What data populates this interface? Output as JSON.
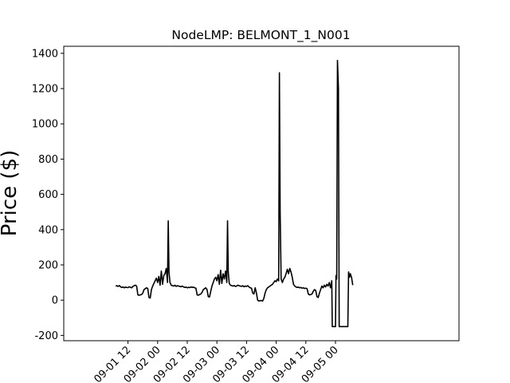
{
  "chart_data": {
    "type": "line",
    "title": "NodeLMP: BELMONT_1_N001",
    "xlabel": "",
    "ylabel": "Price ($)",
    "ylim": [
      -230,
      1440
    ],
    "xlim_hours": [
      -26,
      134
    ],
    "y_ticks": [
      -200,
      0,
      200,
      400,
      600,
      800,
      1000,
      1200,
      1400
    ],
    "x_ticks": [
      {
        "label": "09-01 12",
        "hour": 0
      },
      {
        "label": "09-02 00",
        "hour": 12
      },
      {
        "label": "09-02 12",
        "hour": 24
      },
      {
        "label": "09-03 00",
        "hour": 36
      },
      {
        "label": "09-03 12",
        "hour": 48
      },
      {
        "label": "09-04 00",
        "hour": 60
      },
      {
        "label": "09-04 12",
        "hour": 72
      },
      {
        "label": "09-05 00",
        "hour": 84
      }
    ],
    "grid": false,
    "series": [
      {
        "color": "#000000",
        "points": [
          [
            -5,
            80
          ],
          [
            -4.5,
            82
          ],
          [
            -4,
            78
          ],
          [
            -3.5,
            83
          ],
          [
            -3,
            76
          ],
          [
            -2.5,
            72
          ],
          [
            -2,
            75
          ],
          [
            -1.5,
            70
          ],
          [
            -1,
            74
          ],
          [
            -0.5,
            72
          ],
          [
            0,
            71
          ],
          [
            0.5,
            76
          ],
          [
            1,
            73
          ],
          [
            1.5,
            70
          ],
          [
            2,
            78
          ],
          [
            2.5,
            82
          ],
          [
            3,
            85
          ],
          [
            3.5,
            80
          ],
          [
            4,
            30
          ],
          [
            4.5,
            28
          ],
          [
            5,
            30
          ],
          [
            5.5,
            32
          ],
          [
            6,
            40
          ],
          [
            6.5,
            60
          ],
          [
            7,
            65
          ],
          [
            7.5,
            70
          ],
          [
            8,
            66
          ],
          [
            8.5,
            15
          ],
          [
            9,
            12
          ],
          [
            9.5,
            60
          ],
          [
            10,
            80
          ],
          [
            10.5,
            95
          ],
          [
            11,
            110
          ],
          [
            11.5,
            125
          ],
          [
            12,
            100
          ],
          [
            12.5,
            135
          ],
          [
            13,
            85
          ],
          [
            13.5,
            165
          ],
          [
            14,
            90
          ],
          [
            14.5,
            140
          ],
          [
            15,
            150
          ],
          [
            15.5,
            180
          ],
          [
            16,
            100
          ],
          [
            16.3,
            450
          ],
          [
            16.6,
            160
          ],
          [
            17,
            100
          ],
          [
            17.5,
            85
          ],
          [
            18,
            82
          ],
          [
            18.5,
            80
          ],
          [
            19,
            85
          ],
          [
            19.5,
            78
          ],
          [
            20,
            82
          ],
          [
            20.5,
            80
          ],
          [
            21,
            78
          ],
          [
            21.5,
            76
          ],
          [
            22,
            80
          ],
          [
            22.5,
            75
          ],
          [
            23,
            72
          ],
          [
            23.5,
            74
          ],
          [
            24,
            70
          ],
          [
            24.5,
            73
          ],
          [
            25,
            71
          ],
          [
            25.5,
            75
          ],
          [
            26,
            72
          ],
          [
            26.5,
            74
          ],
          [
            27,
            70
          ],
          [
            27.5,
            68
          ],
          [
            28,
            30
          ],
          [
            28.5,
            28
          ],
          [
            29,
            32
          ],
          [
            29.5,
            35
          ],
          [
            30,
            45
          ],
          [
            30.5,
            60
          ],
          [
            31,
            65
          ],
          [
            31.5,
            70
          ],
          [
            32,
            60
          ],
          [
            32.5,
            20
          ],
          [
            33,
            18
          ],
          [
            33.5,
            50
          ],
          [
            34,
            80
          ],
          [
            34.5,
            100
          ],
          [
            35,
            120
          ],
          [
            35.5,
            130
          ],
          [
            36,
            110
          ],
          [
            36.5,
            145
          ],
          [
            37,
            90
          ],
          [
            37.5,
            170
          ],
          [
            38,
            95
          ],
          [
            38.5,
            150
          ],
          [
            39,
            120
          ],
          [
            39.5,
            165
          ],
          [
            40,
            100
          ],
          [
            40.3,
            450
          ],
          [
            40.6,
            160
          ],
          [
            41,
            95
          ],
          [
            41.5,
            85
          ],
          [
            42,
            82
          ],
          [
            42.5,
            80
          ],
          [
            43,
            83
          ],
          [
            43.5,
            78
          ],
          [
            44,
            80
          ],
          [
            44.5,
            85
          ],
          [
            45,
            82
          ],
          [
            45.5,
            80
          ],
          [
            46,
            78
          ],
          [
            46.5,
            82
          ],
          [
            47,
            76
          ],
          [
            47.5,
            80
          ],
          [
            48,
            78
          ],
          [
            48.5,
            82
          ],
          [
            49,
            75
          ],
          [
            49.5,
            70
          ],
          [
            50,
            68
          ],
          [
            50.5,
            40
          ],
          [
            51,
            35
          ],
          [
            51.5,
            70
          ],
          [
            52,
            40
          ],
          [
            52.5,
            0
          ],
          [
            53,
            -5
          ],
          [
            53.5,
            -3
          ],
          [
            54,
            -2
          ],
          [
            54.5,
            -5
          ],
          [
            55,
            10
          ],
          [
            55.5,
            40
          ],
          [
            56,
            60
          ],
          [
            56.5,
            70
          ],
          [
            57,
            75
          ],
          [
            57.5,
            80
          ],
          [
            58,
            85
          ],
          [
            58.5,
            90
          ],
          [
            59,
            100
          ],
          [
            59.5,
            110
          ],
          [
            60,
            105
          ],
          [
            60.5,
            120
          ],
          [
            61,
            110
          ],
          [
            61.3,
            1290
          ],
          [
            61.6,
            500
          ],
          [
            62,
            120
          ],
          [
            62.5,
            100
          ],
          [
            63,
            120
          ],
          [
            63.5,
            130
          ],
          [
            64,
            150
          ],
          [
            64.5,
            175
          ],
          [
            65,
            150
          ],
          [
            65.5,
            180
          ],
          [
            66,
            160
          ],
          [
            66.5,
            130
          ],
          [
            67,
            90
          ],
          [
            67.5,
            80
          ],
          [
            68,
            75
          ],
          [
            68.5,
            72
          ],
          [
            69,
            74
          ],
          [
            69.5,
            70
          ],
          [
            70,
            72
          ],
          [
            70.5,
            68
          ],
          [
            71,
            70
          ],
          [
            71.5,
            66
          ],
          [
            72,
            68
          ],
          [
            72.5,
            65
          ],
          [
            73,
            35
          ],
          [
            73.5,
            30
          ],
          [
            74,
            32
          ],
          [
            74.5,
            35
          ],
          [
            75,
            50
          ],
          [
            75.5,
            60
          ],
          [
            76,
            55
          ],
          [
            76.5,
            20
          ],
          [
            77,
            15
          ],
          [
            77.5,
            40
          ],
          [
            78,
            60
          ],
          [
            78.5,
            80
          ],
          [
            79,
            70
          ],
          [
            79.5,
            85
          ],
          [
            80,
            75
          ],
          [
            80.5,
            90
          ],
          [
            81,
            80
          ],
          [
            81.5,
            100
          ],
          [
            82,
            70
          ],
          [
            82.5,
            110
          ],
          [
            82.7,
            -150
          ],
          [
            83,
            -150
          ],
          [
            84,
            -150
          ],
          [
            84.2,
            140
          ],
          [
            84.5,
            120
          ],
          [
            84.8,
            1360
          ],
          [
            85.2,
            1200
          ],
          [
            85.5,
            -150
          ],
          [
            86,
            -150
          ],
          [
            88,
            -150
          ],
          [
            89,
            -150
          ],
          [
            89.3,
            160
          ],
          [
            89.7,
            130
          ],
          [
            90,
            150
          ],
          [
            90.5,
            130
          ],
          [
            91,
            85
          ]
        ]
      }
    ]
  }
}
